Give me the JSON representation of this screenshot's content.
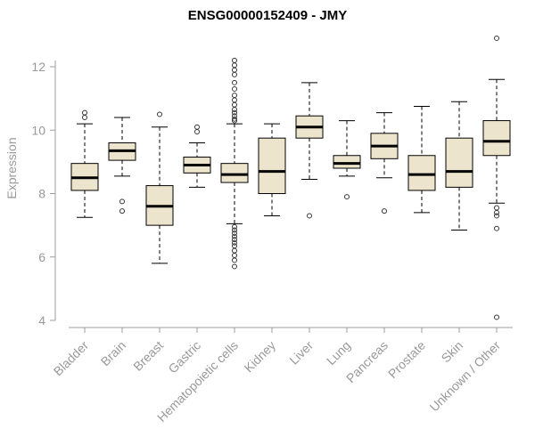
{
  "chart_data": {
    "type": "boxplot",
    "title": "ENSG00000152409 - JMY",
    "ylabel": "Expression",
    "ylim": [
      4,
      12
    ],
    "yticks": [
      4,
      6,
      8,
      10,
      12
    ],
    "grid": false,
    "legend": false,
    "axis_color": "#9e9e9e",
    "tick_label_color": "#999999",
    "box_fill": "#ece4cd",
    "box_stroke": "#000000",
    "outlier_color": "#333333",
    "categories": [
      "Bladder",
      "Brain",
      "Breast",
      "Gastric",
      "Hematopoietic cells",
      "Kidney",
      "Liver",
      "Lung",
      "Pancreas",
      "Prostate",
      "Skin",
      "Unknown / Other"
    ],
    "boxes": [
      {
        "category": "Bladder",
        "low": 7.25,
        "q1": 8.1,
        "median": 8.5,
        "q3": 8.95,
        "high": 10.2,
        "outliers": [
          10.55,
          10.4
        ]
      },
      {
        "category": "Brain",
        "low": 8.55,
        "q1": 9.05,
        "median": 9.35,
        "q3": 9.6,
        "high": 10.4,
        "outliers": [
          7.75,
          7.45
        ]
      },
      {
        "category": "Breast",
        "low": 5.8,
        "q1": 7.0,
        "median": 7.6,
        "q3": 8.25,
        "high": 10.1,
        "outliers": [
          10.5
        ]
      },
      {
        "category": "Gastric",
        "low": 8.2,
        "q1": 8.65,
        "median": 8.9,
        "q3": 9.15,
        "high": 9.6,
        "outliers": [
          10.1,
          9.95
        ]
      },
      {
        "category": "Hematopoietic cells",
        "low": 7.05,
        "q1": 8.35,
        "median": 8.6,
        "q3": 8.95,
        "high": 10.2,
        "outliers": [
          12.2,
          12.05,
          11.9,
          11.75,
          11.5,
          11.3,
          11.1,
          10.95,
          10.8,
          10.65,
          10.55,
          10.45,
          10.35,
          10.3,
          6.95,
          6.85,
          6.75,
          6.65,
          6.55,
          6.45,
          6.35,
          6.2,
          6.05,
          5.9,
          5.7
        ]
      },
      {
        "category": "Kidney",
        "low": 7.3,
        "q1": 8.0,
        "median": 8.7,
        "q3": 9.75,
        "high": 10.2,
        "outliers": []
      },
      {
        "category": "Liver",
        "low": 8.45,
        "q1": 9.75,
        "median": 10.1,
        "q3": 10.45,
        "high": 11.5,
        "outliers": [
          7.3
        ]
      },
      {
        "category": "Lung",
        "low": 8.55,
        "q1": 8.8,
        "median": 8.95,
        "q3": 9.2,
        "high": 10.3,
        "outliers": [
          7.9
        ]
      },
      {
        "category": "Pancreas",
        "low": 8.5,
        "q1": 9.1,
        "median": 9.5,
        "q3": 9.9,
        "high": 10.55,
        "outliers": [
          7.45
        ]
      },
      {
        "category": "Prostate",
        "low": 7.4,
        "q1": 8.1,
        "median": 8.6,
        "q3": 9.2,
        "high": 10.75,
        "outliers": []
      },
      {
        "category": "Skin",
        "low": 6.85,
        "q1": 8.2,
        "median": 8.7,
        "q3": 9.75,
        "high": 10.9,
        "outliers": []
      },
      {
        "category": "Unknown / Other",
        "low": 7.7,
        "q1": 9.2,
        "median": 9.65,
        "q3": 10.3,
        "high": 11.6,
        "outliers": [
          12.9,
          7.55,
          7.4,
          7.3,
          6.9,
          4.1
        ]
      }
    ]
  }
}
